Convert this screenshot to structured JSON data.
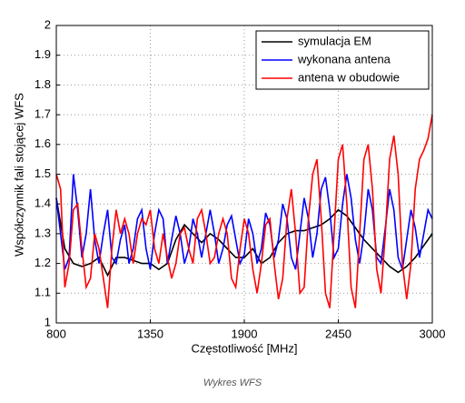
{
  "chart_data": {
    "type": "line",
    "xlabel": "Częstotliwość [MHz]",
    "ylabel": "Współczynnik fali stojącej WFS",
    "caption": "Wykres WFS",
    "xlim": [
      800,
      3000
    ],
    "xticks": [
      800,
      1350,
      1900,
      2450,
      3000
    ],
    "ylim": [
      1,
      2
    ],
    "yticks": [
      1,
      1.1,
      1.2,
      1.3,
      1.4,
      1.5,
      1.6,
      1.7,
      1.8,
      1.9,
      2
    ],
    "grid": true,
    "legend": "upper right",
    "series": [
      {
        "name": "symulacja EM",
        "color": "#000000",
        "x": [
          800,
          850,
          900,
          950,
          1000,
          1050,
          1100,
          1150,
          1200,
          1250,
          1300,
          1350,
          1400,
          1450,
          1500,
          1550,
          1600,
          1650,
          1700,
          1750,
          1800,
          1850,
          1900,
          1950,
          2000,
          2050,
          2100,
          2150,
          2200,
          2250,
          2300,
          2350,
          2400,
          2450,
          2500,
          2550,
          2600,
          2650,
          2700,
          2750,
          2800,
          2850,
          2900,
          2950,
          3000
        ],
        "values": [
          1.42,
          1.25,
          1.2,
          1.19,
          1.2,
          1.22,
          1.16,
          1.22,
          1.22,
          1.21,
          1.2,
          1.2,
          1.18,
          1.2,
          1.28,
          1.33,
          1.3,
          1.27,
          1.3,
          1.28,
          1.25,
          1.22,
          1.22,
          1.25,
          1.2,
          1.22,
          1.27,
          1.3,
          1.31,
          1.31,
          1.32,
          1.33,
          1.35,
          1.38,
          1.36,
          1.32,
          1.28,
          1.25,
          1.22,
          1.19,
          1.17,
          1.19,
          1.22,
          1.26,
          1.3
        ]
      },
      {
        "name": "wykonana antena",
        "color": "#0000ff",
        "x": [
          800,
          825,
          850,
          875,
          900,
          925,
          950,
          975,
          1000,
          1025,
          1050,
          1075,
          1100,
          1125,
          1150,
          1175,
          1200,
          1225,
          1250,
          1275,
          1300,
          1325,
          1350,
          1375,
          1400,
          1425,
          1450,
          1475,
          1500,
          1525,
          1550,
          1575,
          1600,
          1625,
          1650,
          1675,
          1700,
          1725,
          1750,
          1775,
          1800,
          1825,
          1850,
          1875,
          1900,
          1925,
          1950,
          1975,
          2000,
          2025,
          2050,
          2075,
          2100,
          2125,
          2150,
          2175,
          2200,
          2225,
          2250,
          2275,
          2300,
          2325,
          2350,
          2375,
          2400,
          2425,
          2450,
          2475,
          2500,
          2525,
          2550,
          2575,
          2600,
          2625,
          2650,
          2675,
          2700,
          2725,
          2750,
          2775,
          2800,
          2825,
          2850,
          2875,
          2900,
          2925,
          2950,
          2975,
          3000
        ],
        "values": [
          1.42,
          1.3,
          1.18,
          1.22,
          1.5,
          1.38,
          1.22,
          1.3,
          1.45,
          1.28,
          1.2,
          1.3,
          1.38,
          1.22,
          1.2,
          1.28,
          1.33,
          1.2,
          1.25,
          1.35,
          1.38,
          1.25,
          1.18,
          1.3,
          1.38,
          1.35,
          1.2,
          1.28,
          1.36,
          1.3,
          1.2,
          1.25,
          1.35,
          1.3,
          1.22,
          1.3,
          1.38,
          1.3,
          1.2,
          1.25,
          1.33,
          1.36,
          1.28,
          1.2,
          1.23,
          1.35,
          1.3,
          1.2,
          1.25,
          1.37,
          1.33,
          1.22,
          1.28,
          1.4,
          1.35,
          1.22,
          1.18,
          1.3,
          1.42,
          1.35,
          1.22,
          1.3,
          1.45,
          1.49,
          1.38,
          1.22,
          1.25,
          1.4,
          1.5,
          1.42,
          1.28,
          1.2,
          1.3,
          1.45,
          1.38,
          1.22,
          1.2,
          1.32,
          1.45,
          1.38,
          1.22,
          1.18,
          1.28,
          1.38,
          1.32,
          1.22,
          1.3,
          1.38,
          1.35
        ]
      },
      {
        "name": "antena w obudowie",
        "color": "#ff0000",
        "x": [
          800,
          825,
          850,
          875,
          900,
          925,
          950,
          975,
          1000,
          1025,
          1050,
          1075,
          1100,
          1125,
          1150,
          1175,
          1200,
          1225,
          1250,
          1275,
          1300,
          1325,
          1350,
          1375,
          1400,
          1425,
          1450,
          1475,
          1500,
          1525,
          1550,
          1575,
          1600,
          1625,
          1650,
          1675,
          1700,
          1725,
          1750,
          1775,
          1800,
          1825,
          1850,
          1875,
          1900,
          1925,
          1950,
          1975,
          2000,
          2025,
          2050,
          2075,
          2100,
          2125,
          2150,
          2175,
          2200,
          2225,
          2250,
          2275,
          2300,
          2325,
          2350,
          2375,
          2400,
          2425,
          2450,
          2475,
          2500,
          2525,
          2550,
          2575,
          2600,
          2625,
          2650,
          2675,
          2700,
          2725,
          2750,
          2775,
          2800,
          2825,
          2850,
          2875,
          2900,
          2925,
          2950,
          2975,
          3000
        ],
        "values": [
          1.5,
          1.45,
          1.12,
          1.2,
          1.38,
          1.4,
          1.25,
          1.12,
          1.15,
          1.3,
          1.25,
          1.15,
          1.05,
          1.25,
          1.38,
          1.3,
          1.35,
          1.3,
          1.2,
          1.3,
          1.35,
          1.33,
          1.38,
          1.25,
          1.2,
          1.3,
          1.22,
          1.15,
          1.2,
          1.3,
          1.32,
          1.25,
          1.2,
          1.35,
          1.38,
          1.3,
          1.2,
          1.22,
          1.3,
          1.35,
          1.3,
          1.15,
          1.12,
          1.25,
          1.35,
          1.3,
          1.18,
          1.1,
          1.2,
          1.33,
          1.35,
          1.2,
          1.08,
          1.15,
          1.35,
          1.45,
          1.3,
          1.1,
          1.12,
          1.35,
          1.5,
          1.55,
          1.35,
          1.1,
          1.05,
          1.3,
          1.55,
          1.6,
          1.4,
          1.12,
          1.05,
          1.3,
          1.55,
          1.6,
          1.45,
          1.18,
          1.1,
          1.3,
          1.55,
          1.63,
          1.5,
          1.2,
          1.08,
          1.2,
          1.45,
          1.55,
          1.58,
          1.62,
          1.7
        ]
      }
    ]
  }
}
